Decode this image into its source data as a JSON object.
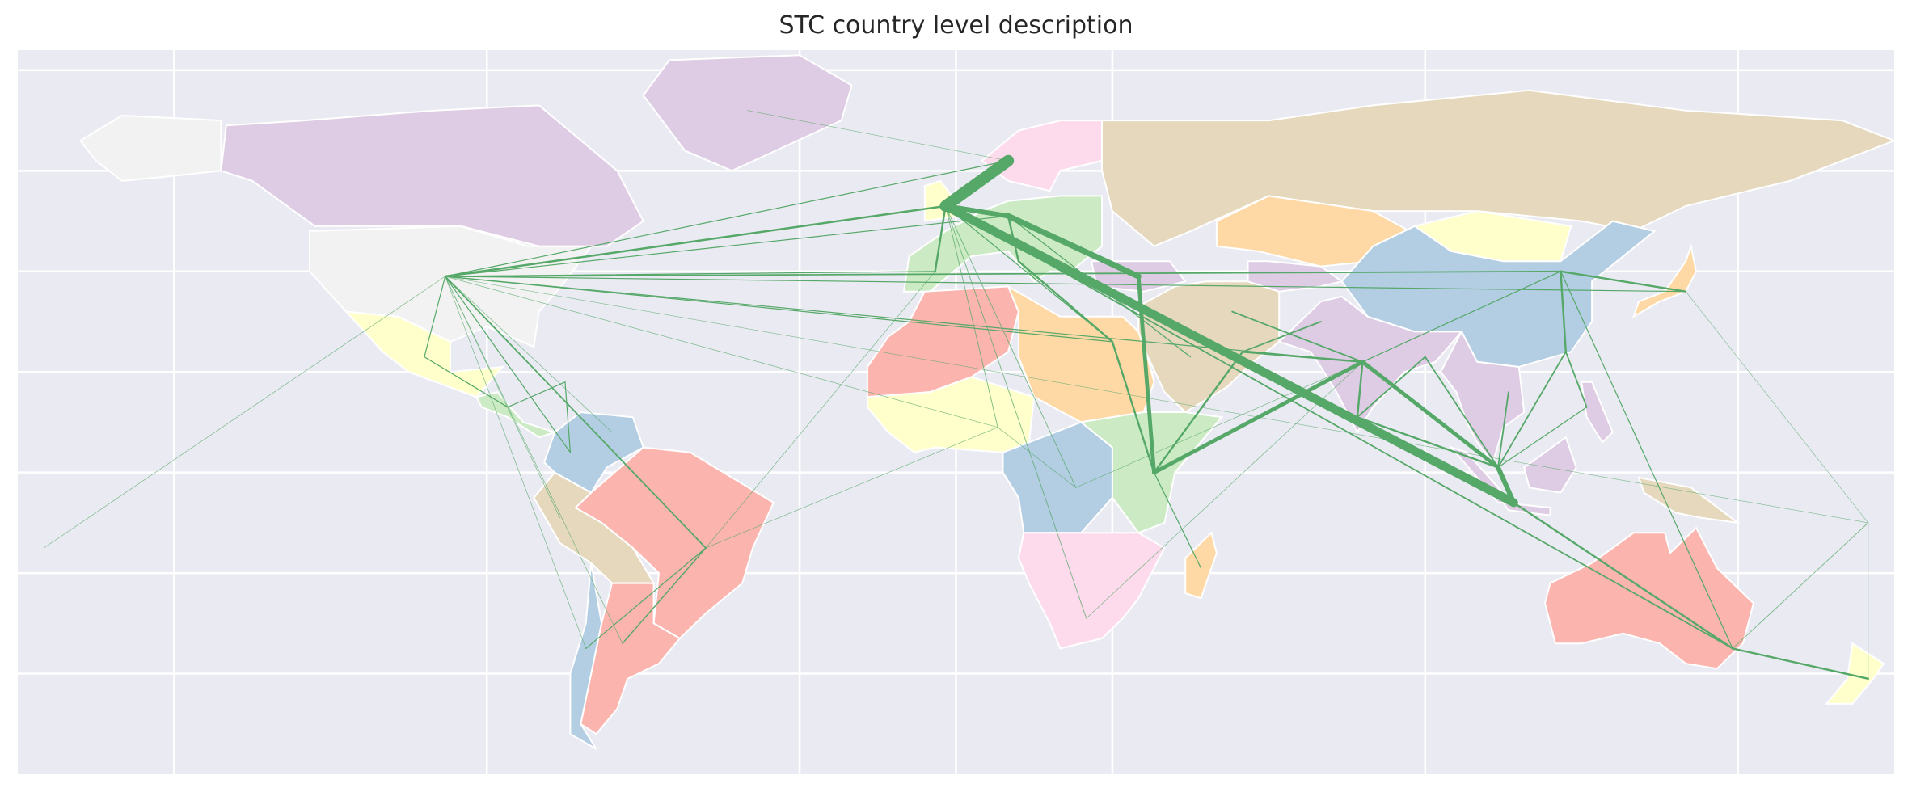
{
  "map": {
    "title": "STC country level description",
    "background_color": "#eaeaf2",
    "gridline_color": "#ffffff",
    "edge_color": "#55a868",
    "land_palette": [
      "#b3cde3",
      "#decbe4",
      "#fed9a6",
      "#ffffcc",
      "#e5d8bd",
      "#fddaec",
      "#fbb4ae",
      "#ccebc5",
      "#f2f2f2"
    ],
    "nodes": [
      {
        "id": "usa",
        "lon": -98,
        "lat": 39
      },
      {
        "id": "mexico",
        "lon": -102,
        "lat": 23
      },
      {
        "id": "central-america",
        "lon": -86,
        "lat": 13
      },
      {
        "id": "caribbean",
        "lon": -75,
        "lat": 18
      },
      {
        "id": "venezuela",
        "lon": -66,
        "lat": 8
      },
      {
        "id": "colombia",
        "lon": -74,
        "lat": 4
      },
      {
        "id": "brazil",
        "lon": -48,
        "lat": -15
      },
      {
        "id": "argentina",
        "lon": -64,
        "lat": -34
      },
      {
        "id": "chile",
        "lon": -71,
        "lat": -35
      },
      {
        "id": "peru",
        "lon": -76,
        "lat": -9
      },
      {
        "id": "norway",
        "lon": 10,
        "lat": 62
      },
      {
        "id": "uk",
        "lon": -2,
        "lat": 53
      },
      {
        "id": "netherlands",
        "lon": 5,
        "lat": 52
      },
      {
        "id": "germany",
        "lon": 10,
        "lat": 51
      },
      {
        "id": "italy",
        "lon": 12,
        "lat": 42
      },
      {
        "id": "turkey",
        "lon": 35,
        "lat": 39
      },
      {
        "id": "spain",
        "lon": -4,
        "lat": 40
      },
      {
        "id": "algeria",
        "lon": 3,
        "lat": 28
      },
      {
        "id": "egypt",
        "lon": 30,
        "lat": 26
      },
      {
        "id": "nigeria",
        "lon": 8,
        "lat": 9
      },
      {
        "id": "kenya",
        "lon": 38,
        "lat": 0
      },
      {
        "id": "saudi-arabia",
        "lon": 45,
        "lat": 23
      },
      {
        "id": "uae",
        "lon": 55,
        "lat": 24
      },
      {
        "id": "iran",
        "lon": 53,
        "lat": 32
      },
      {
        "id": "pakistan",
        "lon": 70,
        "lat": 30
      },
      {
        "id": "india",
        "lon": 78,
        "lat": 22
      },
      {
        "id": "india-south",
        "lon": 77,
        "lat": 11
      },
      {
        "id": "bangladesh",
        "lon": 90,
        "lat": 23
      },
      {
        "id": "singapore",
        "lon": 104,
        "lat": 1
      },
      {
        "id": "indonesia",
        "lon": 107,
        "lat": -6
      },
      {
        "id": "vietnam",
        "lon": 106,
        "lat": 16
      },
      {
        "id": "china",
        "lon": 116,
        "lat": 40
      },
      {
        "id": "china-south",
        "lon": 117,
        "lat": 24
      },
      {
        "id": "japan",
        "lon": 140,
        "lat": 36
      },
      {
        "id": "philippines",
        "lon": 121,
        "lat": 13
      },
      {
        "id": "australia",
        "lon": 149,
        "lat": -35
      },
      {
        "id": "new-zealand",
        "lon": 175,
        "lat": -41
      },
      {
        "id": "south-africa",
        "lon": 25,
        "lat": -29
      },
      {
        "id": "madagascar",
        "lon": 47,
        "lat": -19
      },
      {
        "id": "drc",
        "lon": 23,
        "lat": -3
      },
      {
        "id": "pacific-west",
        "lon": -175,
        "lat": -15
      },
      {
        "id": "pacific-east",
        "lon": 175,
        "lat": -10
      },
      {
        "id": "greenland",
        "lon": -40,
        "lat": 72
      }
    ],
    "edges": [
      {
        "from": "uk",
        "to": "indonesia",
        "weight": 9
      },
      {
        "from": "norway",
        "to": "uk",
        "weight": 12
      },
      {
        "from": "uk",
        "to": "germany",
        "weight": 5
      },
      {
        "from": "germany",
        "to": "turkey",
        "weight": 6
      },
      {
        "from": "turkey",
        "to": "kenya",
        "weight": 4
      },
      {
        "from": "kenya",
        "to": "india",
        "weight": 4
      },
      {
        "from": "india",
        "to": "singapore",
        "weight": 4
      },
      {
        "from": "singapore",
        "to": "indonesia",
        "weight": 5
      },
      {
        "from": "usa",
        "to": "uk",
        "weight": 2
      },
      {
        "from": "usa",
        "to": "norway",
        "weight": 1
      },
      {
        "from": "usa",
        "to": "germany",
        "weight": 1
      },
      {
        "from": "usa",
        "to": "spain",
        "weight": 1
      },
      {
        "from": "usa",
        "to": "egypt",
        "weight": 1
      },
      {
        "from": "usa",
        "to": "china",
        "weight": 1.5
      },
      {
        "from": "usa",
        "to": "japan",
        "weight": 1
      },
      {
        "from": "usa",
        "to": "brazil",
        "weight": 1.5
      },
      {
        "from": "usa",
        "to": "mexico",
        "weight": 1
      },
      {
        "from": "usa",
        "to": "colombia",
        "weight": 1
      },
      {
        "from": "usa",
        "to": "peru",
        "weight": 0.6
      },
      {
        "from": "usa",
        "to": "argentina",
        "weight": 0.6
      },
      {
        "from": "usa",
        "to": "chile",
        "weight": 0.6
      },
      {
        "from": "usa",
        "to": "venezuela",
        "weight": 0.6
      },
      {
        "from": "usa",
        "to": "pacific-west",
        "weight": 0.6
      },
      {
        "from": "usa",
        "to": "india",
        "weight": 1
      },
      {
        "from": "usa",
        "to": "nigeria",
        "weight": 0.6
      },
      {
        "from": "brazil",
        "to": "argentina",
        "weight": 1.2
      },
      {
        "from": "brazil",
        "to": "chile",
        "weight": 1
      },
      {
        "from": "brazil",
        "to": "nigeria",
        "weight": 0.6
      },
      {
        "from": "brazil",
        "to": "spain",
        "weight": 0.6
      },
      {
        "from": "mexico",
        "to": "central-america",
        "weight": 1
      },
      {
        "from": "central-america",
        "to": "caribbean",
        "weight": 1
      },
      {
        "from": "caribbean",
        "to": "colombia",
        "weight": 1
      },
      {
        "from": "germany",
        "to": "italy",
        "weight": 2
      },
      {
        "from": "uk",
        "to": "spain",
        "weight": 2
      },
      {
        "from": "uk",
        "to": "egypt",
        "weight": 1
      },
      {
        "from": "germany",
        "to": "saudi-arabia",
        "weight": 1
      },
      {
        "from": "italy",
        "to": "egypt",
        "weight": 2
      },
      {
        "from": "uk",
        "to": "nigeria",
        "weight": 0.8
      },
      {
        "from": "uk",
        "to": "south-africa",
        "weight": 0.8
      },
      {
        "from": "uk",
        "to": "drc",
        "weight": 0.8
      },
      {
        "from": "egypt",
        "to": "kenya",
        "weight": 2
      },
      {
        "from": "kenya",
        "to": "madagascar",
        "weight": 1
      },
      {
        "from": "kenya",
        "to": "uae",
        "weight": 2
      },
      {
        "from": "uae",
        "to": "pakistan",
        "weight": 1.5
      },
      {
        "from": "uae",
        "to": "india",
        "weight": 2
      },
      {
        "from": "iran",
        "to": "india",
        "weight": 1.5
      },
      {
        "from": "india",
        "to": "india-south",
        "weight": 2
      },
      {
        "from": "india-south",
        "to": "bangladesh",
        "weight": 1.5
      },
      {
        "from": "india-south",
        "to": "singapore",
        "weight": 2
      },
      {
        "from": "bangladesh",
        "to": "singapore",
        "weight": 1.5
      },
      {
        "from": "india",
        "to": "china",
        "weight": 1
      },
      {
        "from": "singapore",
        "to": "vietnam",
        "weight": 1.5
      },
      {
        "from": "singapore",
        "to": "china-south",
        "weight": 1.5
      },
      {
        "from": "china-south",
        "to": "china",
        "weight": 2
      },
      {
        "from": "china",
        "to": "japan",
        "weight": 2
      },
      {
        "from": "china-south",
        "to": "philippines",
        "weight": 1.5
      },
      {
        "from": "singapore",
        "to": "philippines",
        "weight": 1
      },
      {
        "from": "indonesia",
        "to": "australia",
        "weight": 2
      },
      {
        "from": "uk",
        "to": "australia",
        "weight": 1.5
      },
      {
        "from": "australia",
        "to": "new-zealand",
        "weight": 2
      },
      {
        "from": "australia",
        "to": "china",
        "weight": 1
      },
      {
        "from": "australia",
        "to": "pacific-east",
        "weight": 0.8
      },
      {
        "from": "new-zealand",
        "to": "pacific-east",
        "weight": 0.6
      },
      {
        "from": "japan",
        "to": "pacific-east",
        "weight": 0.4
      },
      {
        "from": "usa",
        "to": "pacific-east",
        "weight": 0.4
      },
      {
        "from": "greenland",
        "to": "norway",
        "weight": 0.4
      },
      {
        "from": "india",
        "to": "drc",
        "weight": 0.6
      },
      {
        "from": "india",
        "to": "south-africa",
        "weight": 0.6
      },
      {
        "from": "nigeria",
        "to": "drc",
        "weight": 0.6
      }
    ]
  }
}
